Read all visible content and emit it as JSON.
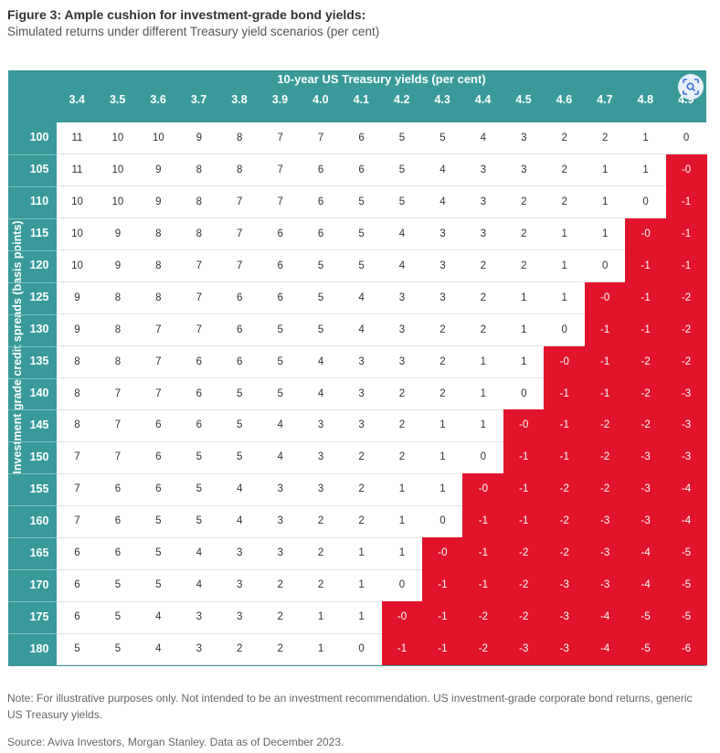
{
  "title": "Figure 3: Ample cushion for investment-grade bond yields:",
  "subtitle": "Simulated returns under different Treasury yield scenarios (per cent)",
  "note": "Note: For illustrative purposes only. Not intended to be an investment recommendation. US investment-grade corporate bond returns, generic US Treasury yields.",
  "source": "Source: Aviva Investors, Morgan Stanley. Data as of December 2023.",
  "lens_icon": "visual-search-icon",
  "colors": {
    "header": "#3a9a9a",
    "negative": "#e1142b",
    "positive": "#ffffff"
  },
  "chart_data": {
    "type": "heatmap",
    "xlabel": "10-year US Treasury yields (per cent)",
    "ylabel": "Investment grade credit spreads (basis points)",
    "x": [
      "3.4",
      "3.5",
      "3.6",
      "3.7",
      "3.8",
      "3.9",
      "4.0",
      "4.1",
      "4.2",
      "4.3",
      "4.4",
      "4.5",
      "4.6",
      "4.7",
      "4.8",
      "4.9"
    ],
    "y": [
      "100",
      "105",
      "110",
      "115",
      "120",
      "125",
      "130",
      "135",
      "140",
      "145",
      "150",
      "155",
      "160",
      "165",
      "170",
      "175",
      "180"
    ],
    "cells": [
      [
        "11",
        "10",
        "10",
        "9",
        "8",
        "7",
        "7",
        "6",
        "5",
        "5",
        "4",
        "3",
        "2",
        "2",
        "1",
        "0"
      ],
      [
        "11",
        "10",
        "9",
        "8",
        "8",
        "7",
        "6",
        "6",
        "5",
        "4",
        "3",
        "3",
        "2",
        "1",
        "1",
        "-0"
      ],
      [
        "10",
        "10",
        "9",
        "8",
        "7",
        "7",
        "6",
        "5",
        "5",
        "4",
        "3",
        "2",
        "2",
        "1",
        "0",
        "-1"
      ],
      [
        "10",
        "9",
        "8",
        "8",
        "7",
        "6",
        "6",
        "5",
        "4",
        "3",
        "3",
        "2",
        "1",
        "1",
        "-0",
        "-1"
      ],
      [
        "10",
        "9",
        "8",
        "7",
        "7",
        "6",
        "5",
        "5",
        "4",
        "3",
        "2",
        "2",
        "1",
        "0",
        "-1",
        "-1"
      ],
      [
        "9",
        "8",
        "8",
        "7",
        "6",
        "6",
        "5",
        "4",
        "3",
        "3",
        "2",
        "1",
        "1",
        "-0",
        "-1",
        "-2"
      ],
      [
        "9",
        "8",
        "7",
        "7",
        "6",
        "5",
        "5",
        "4",
        "3",
        "2",
        "2",
        "1",
        "0",
        "-1",
        "-1",
        "-2"
      ],
      [
        "8",
        "8",
        "7",
        "6",
        "6",
        "5",
        "4",
        "3",
        "3",
        "2",
        "1",
        "1",
        "-0",
        "-1",
        "-2",
        "-2"
      ],
      [
        "8",
        "7",
        "7",
        "6",
        "5",
        "5",
        "4",
        "3",
        "2",
        "2",
        "1",
        "0",
        "-1",
        "-1",
        "-2",
        "-3"
      ],
      [
        "8",
        "7",
        "6",
        "6",
        "5",
        "4",
        "3",
        "3",
        "2",
        "1",
        "1",
        "-0",
        "-1",
        "-2",
        "-2",
        "-3"
      ],
      [
        "7",
        "7",
        "6",
        "5",
        "5",
        "4",
        "3",
        "2",
        "2",
        "1",
        "0",
        "-1",
        "-1",
        "-2",
        "-3",
        "-3"
      ],
      [
        "7",
        "6",
        "6",
        "5",
        "4",
        "3",
        "3",
        "2",
        "1",
        "1",
        "-0",
        "-1",
        "-2",
        "-2",
        "-3",
        "-4"
      ],
      [
        "7",
        "6",
        "5",
        "5",
        "4",
        "3",
        "2",
        "2",
        "1",
        "0",
        "-1",
        "-1",
        "-2",
        "-3",
        "-3",
        "-4"
      ],
      [
        "6",
        "6",
        "5",
        "4",
        "3",
        "3",
        "2",
        "1",
        "1",
        "-0",
        "-1",
        "-2",
        "-2",
        "-3",
        "-4",
        "-5"
      ],
      [
        "6",
        "5",
        "5",
        "4",
        "3",
        "2",
        "2",
        "1",
        "0",
        "-1",
        "-1",
        "-2",
        "-3",
        "-3",
        "-4",
        "-5"
      ],
      [
        "6",
        "5",
        "4",
        "3",
        "3",
        "2",
        "1",
        "1",
        "-0",
        "-1",
        "-2",
        "-2",
        "-3",
        "-4",
        "-5",
        "-5"
      ],
      [
        "5",
        "5",
        "4",
        "3",
        "2",
        "2",
        "1",
        "0",
        "-1",
        "-1",
        "-2",
        "-3",
        "-3",
        "-4",
        "-5",
        "-6"
      ]
    ]
  }
}
